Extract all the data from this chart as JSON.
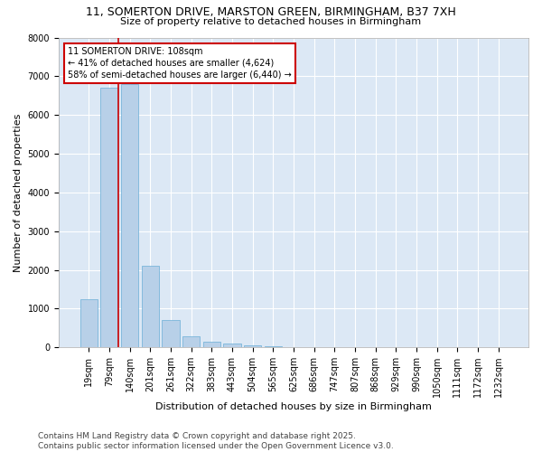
{
  "title": "11, SOMERTON DRIVE, MARSTON GREEN, BIRMINGHAM, B37 7XH",
  "subtitle": "Size of property relative to detached houses in Birmingham",
  "xlabel": "Distribution of detached houses by size in Birmingham",
  "ylabel": "Number of detached properties",
  "bar_color": "#b8d0e8",
  "bar_edge_color": "#6aaed6",
  "plot_bg_color": "#dce8f5",
  "background_color": "#ffffff",
  "grid_color": "#ffffff",
  "categories": [
    "19sqm",
    "79sqm",
    "140sqm",
    "201sqm",
    "261sqm",
    "322sqm",
    "383sqm",
    "443sqm",
    "504sqm",
    "565sqm",
    "625sqm",
    "686sqm",
    "747sqm",
    "807sqm",
    "868sqm",
    "929sqm",
    "990sqm",
    "1050sqm",
    "1111sqm",
    "1172sqm",
    "1232sqm"
  ],
  "values": [
    1250,
    6700,
    6800,
    2100,
    700,
    290,
    150,
    95,
    50,
    28,
    10,
    4,
    2,
    1,
    1,
    0,
    0,
    0,
    0,
    0,
    0
  ],
  "ylim": [
    0,
    8000
  ],
  "yticks": [
    0,
    1000,
    2000,
    3000,
    4000,
    5000,
    6000,
    7000,
    8000
  ],
  "property_line_x": 1.46,
  "annotation_title": "11 SOMERTON DRIVE: 108sqm",
  "annotation_line1": "← 41% of detached houses are smaller (4,624)",
  "annotation_line2": "58% of semi-detached houses are larger (6,440) →",
  "annotation_box_color": "#ffffff",
  "annotation_box_edge_color": "#cc0000",
  "red_line_color": "#cc0000",
  "footer_line1": "Contains HM Land Registry data © Crown copyright and database right 2025.",
  "footer_line2": "Contains public sector information licensed under the Open Government Licence v3.0.",
  "title_fontsize": 9,
  "subtitle_fontsize": 8,
  "axis_label_fontsize": 8,
  "tick_fontsize": 7,
  "annotation_fontsize": 7,
  "footer_fontsize": 6.5
}
